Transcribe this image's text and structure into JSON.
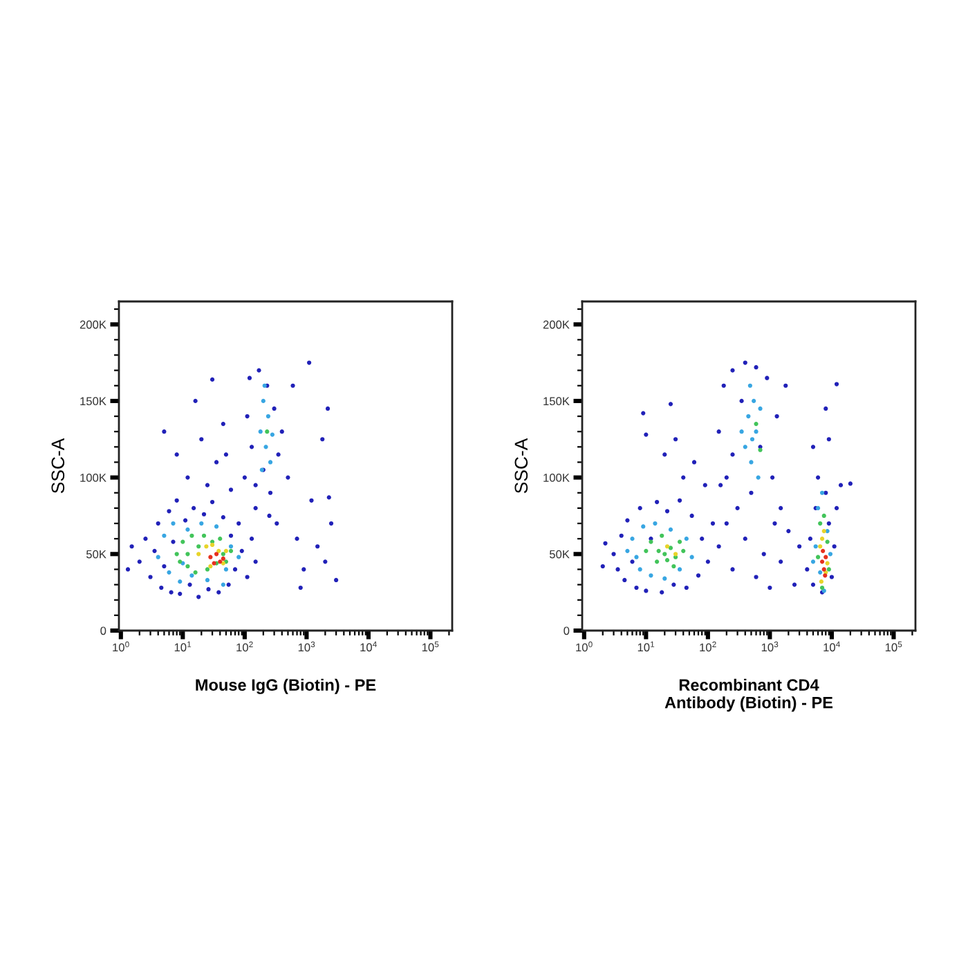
{
  "chart_data": [
    {
      "type": "scatter",
      "xlabel": "Mouse IgG (Biotin) - PE",
      "ylabel": "SSC-A",
      "log": "x",
      "marker": "circle",
      "xlim": [
        0.93,
        225000
      ],
      "ylim": [
        0,
        215000
      ],
      "xticks": [
        {
          "value": 1,
          "label": "10$^{0}$"
        },
        {
          "value": 10,
          "label": "10$^{1}$"
        },
        {
          "value": 100,
          "label": "10$^{2}$"
        },
        {
          "value": 1000,
          "label": "10$^{3}$"
        },
        {
          "value": 10000,
          "label": "10$^{4}$"
        },
        {
          "value": 100000,
          "label": "10$^{5}$"
        }
      ],
      "yticks": [
        0,
        {
          "value": 50000,
          "label": "50K"
        },
        {
          "value": 100000,
          "label": "100K"
        },
        {
          "value": 150000,
          "label": "150K"
        },
        {
          "value": 200000,
          "label": "200K"
        }
      ],
      "series": [
        {
          "color": "#2121b8",
          "x": [
            2.0,
            2.5,
            3.0,
            3.5,
            4.0,
            4.5,
            5.0,
            6.0,
            6.5,
            7.0,
            8.0,
            9.0,
            11,
            13,
            15,
            18,
            22,
            26,
            30,
            38,
            45,
            55,
            60,
            70,
            80,
            90,
            110,
            130,
            150,
            1.5,
            1.3,
            5,
            8,
            12,
            16,
            20,
            25,
            35,
            45,
            60,
            50,
            30,
            100,
            110,
            120,
            130,
            150,
            170,
            200,
            230,
            260,
            300,
            350,
            400,
            500,
            600,
            150,
            250,
            330,
            700,
            900,
            1200,
            1500,
            2000,
            2500,
            3000,
            800,
            1800,
            2200,
            1100,
            2300
          ],
          "values": [
            45000,
            60000,
            35000,
            52000,
            70000,
            28000,
            42000,
            78000,
            25000,
            58000,
            85000,
            24000,
            72000,
            30000,
            80000,
            22000,
            76000,
            27000,
            84000,
            25000,
            74000,
            30000,
            62000,
            40000,
            70000,
            52000,
            35000,
            60000,
            45000,
            55000,
            40000,
            130000,
            115000,
            100000,
            150000,
            125000,
            95000,
            110000,
            135000,
            92000,
            115000,
            164000,
            100000,
            140000,
            165000,
            120000,
            95000,
            170000,
            105000,
            160000,
            90000,
            145000,
            115000,
            130000,
            100000,
            160000,
            80000,
            75000,
            70000,
            60000,
            40000,
            85000,
            55000,
            45000,
            70000,
            33000,
            28000,
            125000,
            145000,
            175000,
            87000
          ]
        },
        {
          "color": "#38a6e2",
          "x": [
            4,
            5,
            6,
            7,
            9,
            12,
            14,
            20,
            25,
            35,
            50,
            60,
            45,
            10,
            80,
            180,
            200,
            220,
            240,
            260,
            210,
            190,
            280
          ],
          "values": [
            48000,
            62000,
            38000,
            70000,
            32000,
            66000,
            36000,
            70000,
            33000,
            68000,
            40000,
            55000,
            30000,
            44000,
            48000,
            130000,
            150000,
            120000,
            140000,
            110000,
            160000,
            105000,
            128000
          ]
        },
        {
          "color": "#42c45a",
          "x": [
            8,
            10,
            12,
            14,
            16,
            18,
            22,
            25,
            30,
            35,
            40,
            45,
            12,
            9,
            50,
            60,
            230
          ],
          "values": [
            50000,
            58000,
            42000,
            62000,
            38000,
            55000,
            62000,
            40000,
            58000,
            44000,
            60000,
            50000,
            50000,
            45000,
            45000,
            52000,
            130000
          ]
        },
        {
          "color": "#e8d42a",
          "x": [
            18,
            24,
            30,
            38,
            45,
            50,
            28
          ],
          "values": [
            50000,
            55000,
            56000,
            52000,
            44000,
            52000,
            42000
          ]
        },
        {
          "color": "#e6301e",
          "x": [
            28,
            35,
            40,
            32,
            45
          ],
          "values": [
            48000,
            50000,
            45000,
            44000,
            47000
          ]
        }
      ]
    },
    {
      "type": "scatter",
      "xlabel": "Recombinant CD4\nAntibody (Biotin) - PE",
      "ylabel": "SSC-A",
      "log": "x",
      "marker": "circle",
      "xlim": [
        0.93,
        225000
      ],
      "ylim": [
        0,
        215000
      ],
      "xticks": [
        {
          "value": 1,
          "label": "10$^{0}$"
        },
        {
          "value": 10,
          "label": "10$^{1}$"
        },
        {
          "value": 100,
          "label": "10$^{2}$"
        },
        {
          "value": 1000,
          "label": "10$^{3}$"
        },
        {
          "value": 10000,
          "label": "10$^{4}$"
        },
        {
          "value": 100000,
          "label": "10$^{5}$"
        }
      ],
      "yticks": [
        0,
        {
          "value": 50000,
          "label": "50K"
        },
        {
          "value": 100000,
          "label": "100K"
        },
        {
          "value": 150000,
          "label": "150K"
        },
        {
          "value": 200000,
          "label": "200K"
        }
      ],
      "series": [
        {
          "color": "#2121b8",
          "x": [
            3,
            3.5,
            4,
            4.5,
            5,
            6,
            7,
            8,
            10,
            12,
            15,
            18,
            22,
            28,
            35,
            45,
            55,
            70,
            80,
            100,
            120,
            2.2,
            2.0,
            9,
            10,
            20,
            30,
            40,
            25,
            60,
            90,
            150,
            180,
            200,
            250,
            300,
            350,
            400,
            500,
            600,
            700,
            900,
            1100,
            1300,
            1500,
            250,
            1800,
            160,
            150,
            250,
            400,
            600,
            800,
            1000,
            1500,
            2000,
            2500,
            3000,
            200,
            1200,
            4000,
            4500,
            5000,
            5500,
            6000,
            7000,
            8000,
            9000,
            10000,
            11000,
            12000,
            5000,
            9000,
            14000,
            12000,
            8000,
            20000
          ],
          "values": [
            50000,
            40000,
            62000,
            33000,
            72000,
            45000,
            28000,
            80000,
            26000,
            60000,
            84000,
            25000,
            78000,
            30000,
            85000,
            28000,
            75000,
            36000,
            60000,
            45000,
            70000,
            57000,
            42000,
            142000,
            128000,
            115000,
            125000,
            100000,
            148000,
            110000,
            95000,
            130000,
            160000,
            100000,
            170000,
            80000,
            150000,
            175000,
            90000,
            172000,
            120000,
            165000,
            100000,
            140000,
            80000,
            115000,
            160000,
            95000,
            55000,
            40000,
            60000,
            35000,
            50000,
            28000,
            45000,
            65000,
            30000,
            55000,
            70000,
            70000,
            40000,
            60000,
            30000,
            80000,
            100000,
            25000,
            90000,
            70000,
            35000,
            55000,
            80000,
            120000,
            125000,
            95000,
            161000,
            145000,
            96000
          ]
        },
        {
          "color": "#38a6e2",
          "x": [
            5,
            6,
            8,
            9,
            12,
            14,
            20,
            25,
            35,
            45,
            55,
            7,
            400,
            450,
            500,
            550,
            600,
            650,
            700,
            480,
            350,
            520,
            6000,
            7000,
            6500,
            8500,
            5500,
            7500,
            9500,
            5000
          ],
          "values": [
            52000,
            60000,
            40000,
            68000,
            36000,
            70000,
            34000,
            66000,
            40000,
            60000,
            48000,
            48000,
            120000,
            140000,
            110000,
            150000,
            130000,
            100000,
            145000,
            160000,
            130000,
            125000,
            80000,
            90000,
            38000,
            65000,
            55000,
            26000,
            50000,
            45000
          ]
        },
        {
          "color": "#42c45a",
          "x": [
            10,
            12,
            15,
            18,
            20,
            25,
            30,
            35,
            16,
            28,
            40,
            22,
            600,
            700,
            6500,
            7500,
            6000,
            8500,
            9000,
            7000
          ],
          "values": [
            52000,
            58000,
            45000,
            62000,
            50000,
            54000,
            48000,
            58000,
            52000,
            42000,
            52000,
            46000,
            135000,
            118000,
            70000,
            75000,
            48000,
            58000,
            40000,
            28000
          ]
        },
        {
          "color": "#e8d42a",
          "x": [
            22,
            30,
            6500,
            7000,
            8500,
            8000,
            6800,
            7500
          ],
          "values": [
            55000,
            50000,
            55000,
            60000,
            44000,
            38000,
            32000,
            65000
          ]
        },
        {
          "color": "#e6301e",
          "x": [
            7000,
            7500,
            8000,
            7800,
            7200
          ],
          "values": [
            45000,
            40000,
            48000,
            36000,
            52000
          ]
        }
      ]
    }
  ]
}
